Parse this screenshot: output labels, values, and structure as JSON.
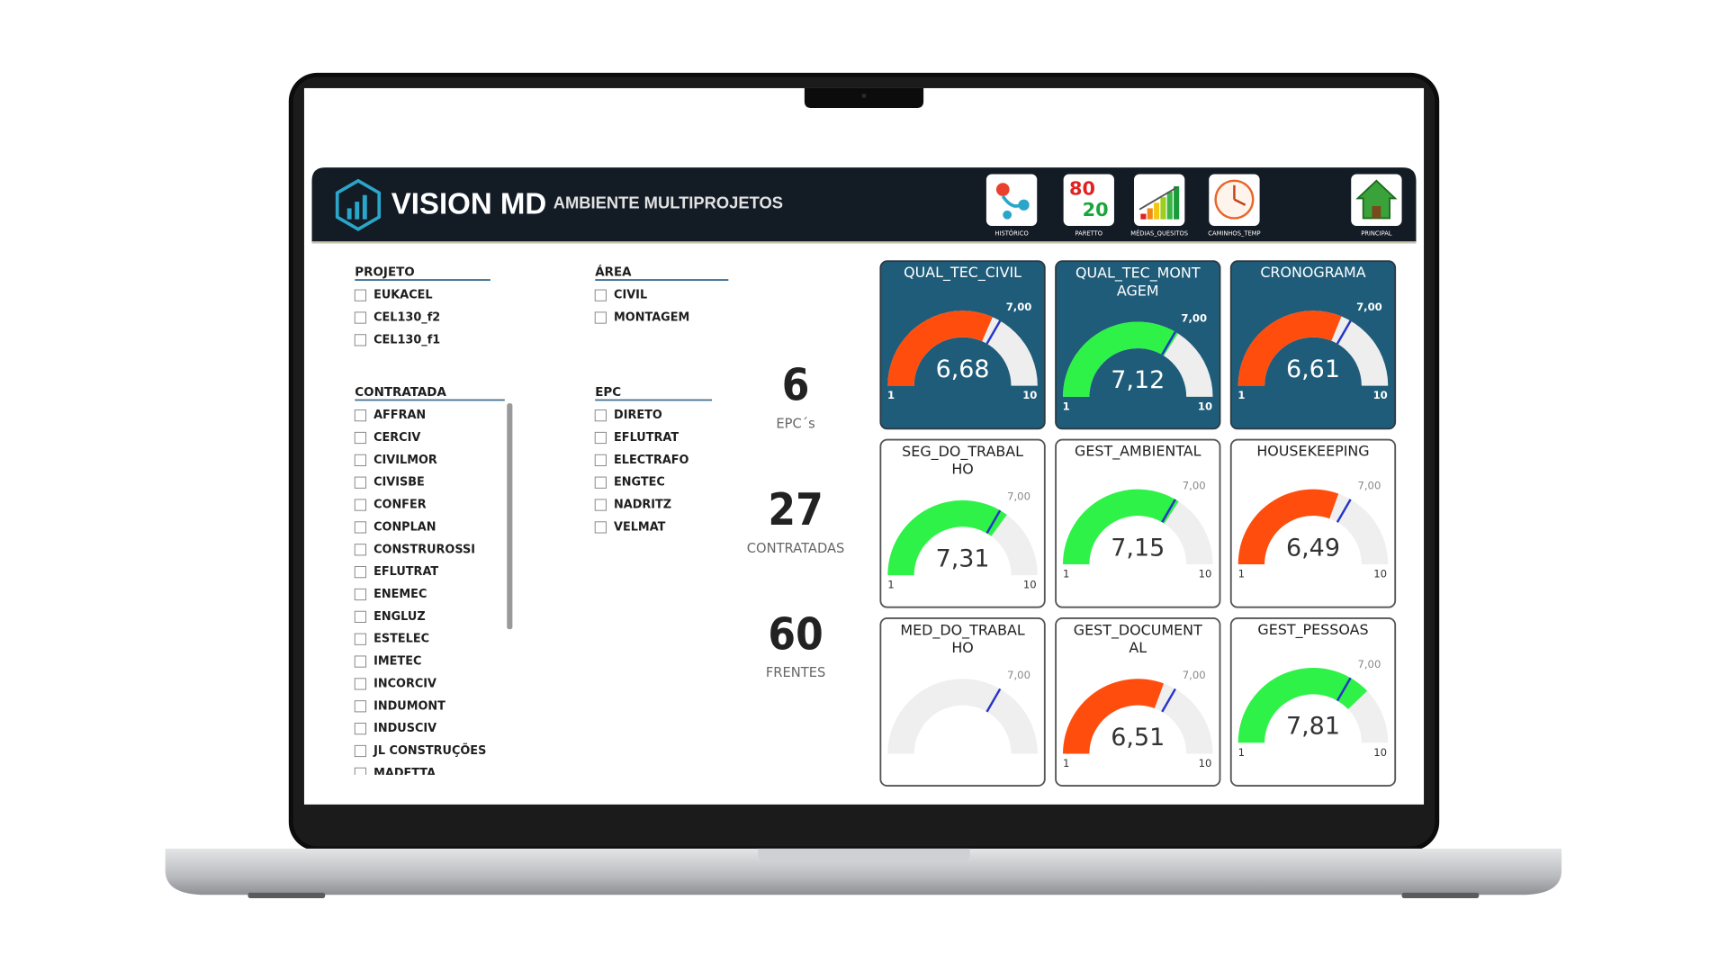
{
  "header": {
    "title": "VISION MD",
    "subtitle": "AMBIENTE MULTIPROJETOS"
  },
  "nav": [
    {
      "label": "HISTÓRICO"
    },
    {
      "label": "PARETTO",
      "icon_text": [
        "80",
        "20"
      ]
    },
    {
      "label": "MÉDIAS_QUESITOS"
    },
    {
      "label": "CAMINHOS_TEMP"
    },
    {
      "label": "PRINCIPAL"
    }
  ],
  "filters": [
    {
      "title": "PROJETO",
      "items": [
        "EUKACEL",
        "CEL130_f2",
        "CEL130_f1"
      ]
    },
    {
      "title": "ÁREA",
      "items": [
        "CIVIL",
        "MONTAGEM"
      ]
    },
    {
      "title": "CONTRATADA",
      "items": [
        "AFFRAN",
        "CERCIV",
        "CIVILMOR",
        "CIVISBE",
        "CONFER",
        "CONPLAN",
        "CONSTRUROSSI",
        "EFLUTRAT",
        "ENEMEC",
        "ENGLUZ",
        "ESTELEC",
        "IMETEC",
        "INCORCIV",
        "INDUMONT",
        "INDUSCIV",
        "JL CONSTRUÇÕES",
        "MADETTA"
      ]
    },
    {
      "title": "EPC",
      "items": [
        "DIRETO",
        "EFLUTRAT",
        "ELECTRAFO",
        "ENGTEC",
        "NADRITZ",
        "VELMAT"
      ]
    }
  ],
  "kpis": [
    {
      "value": 6,
      "label": "EPC´s"
    },
    {
      "value": 27,
      "label": "CONTRATADAS"
    },
    {
      "value": 60,
      "label": "FRENTES"
    }
  ],
  "scale": {
    "min": 1,
    "max": 10
  },
  "gauges": [
    {
      "title": "QUAL_TEC_CIVIL",
      "value": 6.68,
      "value_label": "6,68",
      "target": 7,
      "target_label": "7,00",
      "color": "#ff4d0d",
      "highlight": true
    },
    {
      "title": "QUAL_TEC_MONTAGEM",
      "value": 7.12,
      "value_label": "7,12",
      "target": 7,
      "target_label": "7,00",
      "color": "#2ef247",
      "highlight": true
    },
    {
      "title": "CRONOGRAMA",
      "value": 6.61,
      "value_label": "6,61",
      "target": 7,
      "target_label": "7,00",
      "color": "#ff4d0d",
      "highlight": true
    },
    {
      "title": "SEG_DO_TRABALHO",
      "value": 7.31,
      "value_label": "7,31",
      "target": 7,
      "target_label": "7,00",
      "color": "#2ef247",
      "highlight": false
    },
    {
      "title": "GEST_AMBIENTAL",
      "value": 7.15,
      "value_label": "7,15",
      "target": 7,
      "target_label": "7,00",
      "color": "#2ef247",
      "highlight": false
    },
    {
      "title": "HOUSEKEEPING",
      "value": 6.49,
      "value_label": "6,49",
      "target": 7,
      "target_label": "7,00",
      "color": "#ff4d0d",
      "highlight": false
    },
    {
      "title": "MED_DO_TRABALHO",
      "target": 7,
      "target_label": "7,00",
      "highlight": false
    },
    {
      "title": "GEST_DOCUMENTAL",
      "value": 6.51,
      "value_label": "6,51",
      "target": 7,
      "target_label": "7,00",
      "color": "#ff4d0d",
      "highlight": false
    },
    {
      "title": "GEST_PESSOAS",
      "value": 7.81,
      "value_label": "7,81",
      "target": 7,
      "target_label": "7,00",
      "color": "#2ef247",
      "highlight": false
    }
  ]
}
